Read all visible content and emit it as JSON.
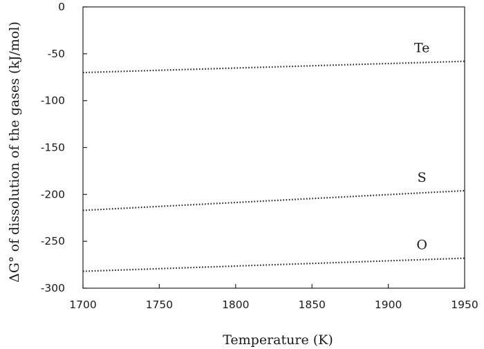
{
  "chart_data": {
    "type": "line",
    "xlabel": "Temperature (K)",
    "ylabel": "ΔG° of dissolution of the gases (kJ/mol)",
    "xlim": [
      1700,
      1950
    ],
    "ylim": [
      -300,
      0
    ],
    "xticks": [
      1700,
      1750,
      1800,
      1850,
      1900,
      1950
    ],
    "yticks": [
      0,
      -50,
      -100,
      -150,
      -200,
      -250,
      -300
    ],
    "grid": false,
    "legend": "none",
    "line_style": "dotted",
    "series": [
      {
        "name": "Te",
        "x": [
          1700,
          1950
        ],
        "y": [
          -70,
          -58
        ]
      },
      {
        "name": "S",
        "x": [
          1700,
          1950
        ],
        "y": [
          -217,
          -196
        ]
      },
      {
        "name": "O",
        "x": [
          1700,
          1950
        ],
        "y": [
          -282,
          -268
        ]
      }
    ]
  }
}
